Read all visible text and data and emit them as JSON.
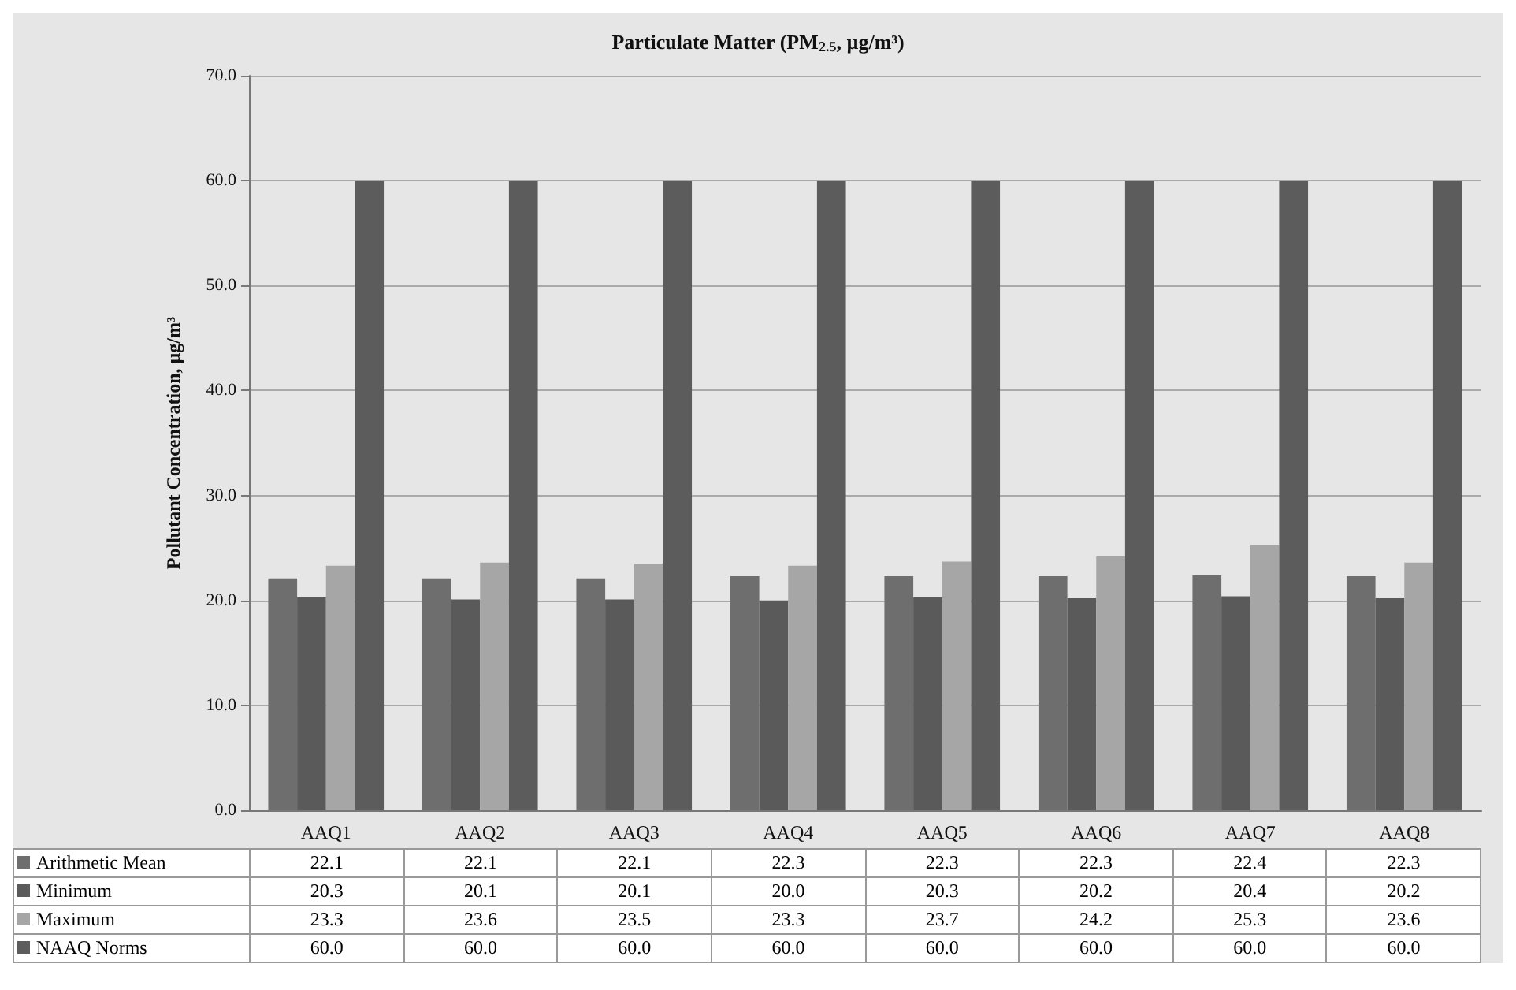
{
  "chart_data": {
    "type": "bar",
    "title": "Particulate Matter (PM$_{2.5}$, µg/m³)",
    "ylabel": "Pollutant Concentration, µg/m³",
    "categories": [
      "AAQ1",
      "AAQ2",
      "AAQ3",
      "AAQ4",
      "AAQ5",
      "AAQ6",
      "AAQ7",
      "AAQ8"
    ],
    "series": [
      {
        "name": "Arithmetic Mean",
        "color": "#6e6e6e",
        "values": [
          22.1,
          22.1,
          22.1,
          22.3,
          22.3,
          22.3,
          22.4,
          22.3
        ],
        "value_labels": [
          "22.1",
          "22.1",
          "22.1",
          "22.3",
          "22.3",
          "22.3",
          "22.4",
          "22.3"
        ]
      },
      {
        "name": "Minimum",
        "color": "#5a5a5a",
        "values": [
          20.3,
          20.1,
          20.1,
          20.0,
          20.3,
          20.2,
          20.4,
          20.2
        ],
        "value_labels": [
          "20.3",
          "20.1",
          "20.1",
          "20.0",
          "20.3",
          "20.2",
          "20.4",
          "20.2"
        ]
      },
      {
        "name": "Maximum",
        "color": "#a6a6a6",
        "values": [
          23.3,
          23.6,
          23.5,
          23.3,
          23.7,
          24.2,
          25.3,
          23.6
        ],
        "value_labels": [
          "23.3",
          "23.6",
          "23.5",
          "23.3",
          "23.7",
          "24.2",
          "25.3",
          "23.6"
        ]
      },
      {
        "name": "NAAQ Norms",
        "color": "#5c5c5c",
        "values": [
          60.0,
          60.0,
          60.0,
          60.0,
          60.0,
          60.0,
          60.0,
          60.0
        ],
        "value_labels": [
          "60.0",
          "60.0",
          "60.0",
          "60.0",
          "60.0",
          "60.0",
          "60.0",
          "60.0"
        ]
      }
    ],
    "ylim": [
      0,
      70
    ],
    "yticks": [
      {
        "value": 0,
        "label": "0.0"
      },
      {
        "value": 10,
        "label": "10.0"
      },
      {
        "value": 20,
        "label": "20.0"
      },
      {
        "value": 30,
        "label": "30.0"
      },
      {
        "value": 40,
        "label": "40.0"
      },
      {
        "value": 50,
        "label": "50.0"
      },
      {
        "value": 60,
        "label": "60.0"
      },
      {
        "value": 70,
        "label": "70.0"
      }
    ],
    "grid": "y",
    "legend": "bottom"
  }
}
